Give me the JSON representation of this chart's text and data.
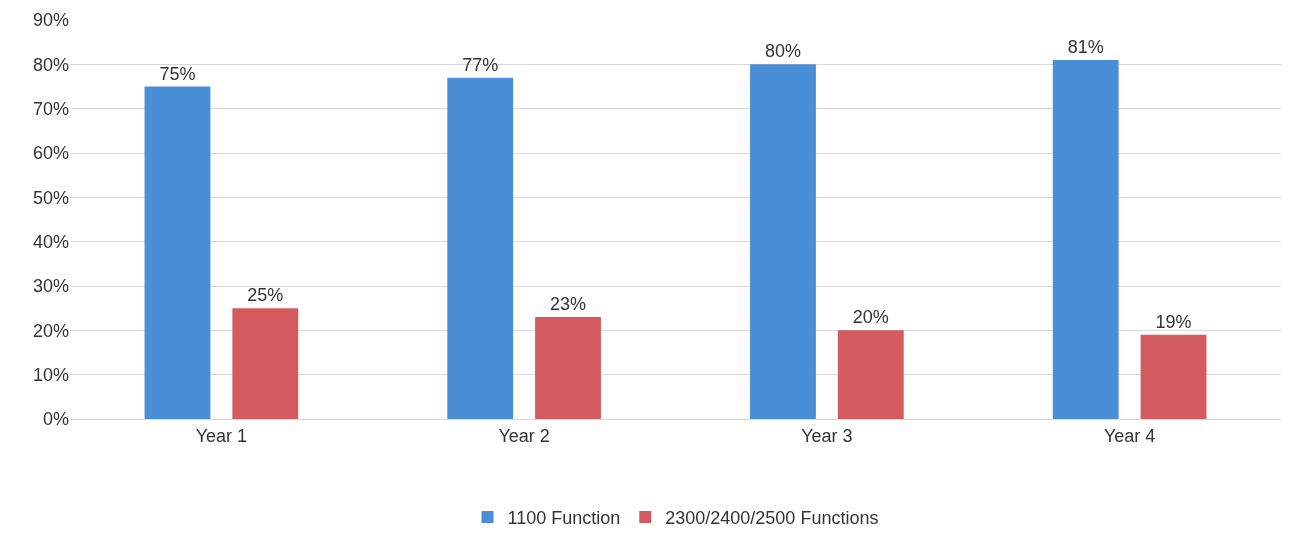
{
  "chart_data": {
    "type": "bar",
    "categories": [
      "Year 1",
      "Year 2",
      "Year 3",
      "Year 4"
    ],
    "series": [
      {
        "name": "1100 Function",
        "color": "#4a8fd6",
        "values": [
          75,
          77,
          80,
          81
        ],
        "value_labels": [
          "75%",
          "77%",
          "80%",
          "81%"
        ]
      },
      {
        "name": "2300/2400/2500 Functions",
        "color": "#d35b5f",
        "values": [
          25,
          23,
          20,
          19
        ],
        "value_labels": [
          "25%",
          "23%",
          "20%",
          "19%"
        ]
      }
    ],
    "ylim": [
      0,
      90
    ],
    "yticks": [
      {
        "value": 0,
        "label": "0%"
      },
      {
        "value": 10,
        "label": "10%"
      },
      {
        "value": 20,
        "label": "20%"
      },
      {
        "value": 30,
        "label": "30%"
      },
      {
        "value": 40,
        "label": "40%"
      },
      {
        "value": 50,
        "label": "50%"
      },
      {
        "value": 60,
        "label": "60%"
      },
      {
        "value": 70,
        "label": "70%"
      },
      {
        "value": 80,
        "label": "80%"
      },
      {
        "value": 90,
        "label": "90%"
      }
    ],
    "grid": "y",
    "legend": "bottom"
  }
}
